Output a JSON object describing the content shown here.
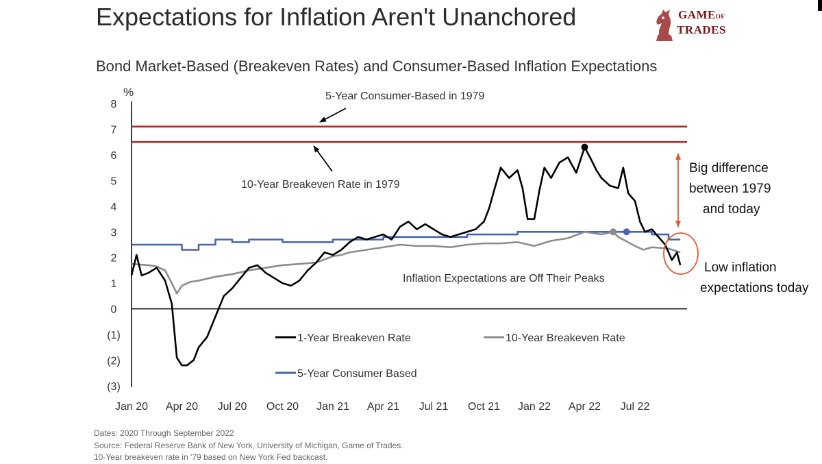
{
  "header": {
    "title": "Expectations for Inflation Aren't Unanchored",
    "subtitle": "Bond Market-Based (Breakeven Rates) and Consumer-Based Inflation Expectations"
  },
  "logo": {
    "line1_a": "GAME",
    "line1_b": "OF",
    "line2": "TRADES"
  },
  "footer": {
    "dates": "Dates: 2020 Through September 2022",
    "source": "Source: Federal Reserve Bank of New York, University of Michigan, Game of Trades.",
    "note": "10-Year breakeven rate in '79 based on New York Fed backcast."
  },
  "colors": {
    "one_year": "#000000",
    "ten_year": "#8c8c8c",
    "consumer": "#4a63b0",
    "ref_lines": "#b02a2a",
    "callout": "#e05a2a"
  },
  "chart_data": {
    "type": "line",
    "y_unit": "%",
    "ylim": [
      -3,
      8
    ],
    "yticks": [
      "8",
      "7",
      "6",
      "5",
      "4",
      "3",
      "2",
      "1",
      "0",
      "(1)",
      "(2)",
      "(3)"
    ],
    "ytick_values": [
      8,
      7,
      6,
      5,
      4,
      3,
      2,
      1,
      0,
      -1,
      -2,
      -3
    ],
    "x_range": [
      "2020-01",
      "2022-09"
    ],
    "xticks": [
      "Jan 20",
      "Apr 20",
      "Jul 20",
      "Oct 20",
      "Jan 21",
      "Apr 21",
      "Jul 21",
      "Oct 21",
      "Jan 22",
      "Apr 22",
      "Jul 22"
    ],
    "xtick_months": [
      0,
      3,
      6,
      9,
      12,
      15,
      18,
      21,
      24,
      27,
      30
    ],
    "reference_lines": [
      {
        "name": "5-Year Consumer-Based in 1979",
        "value": 7.1
      },
      {
        "name": "10-Year Breakeven Rate in 1979",
        "value": 6.5
      }
    ],
    "series": [
      {
        "name": "1-Year Breakeven Rate",
        "x_months": [
          0,
          0.3,
          0.6,
          1,
          1.5,
          2,
          2.4,
          2.7,
          3,
          3.3,
          3.7,
          4,
          4.5,
          5,
          5.5,
          6,
          6.5,
          7,
          7.5,
          8,
          8.5,
          9,
          9.5,
          10,
          10.5,
          11,
          11.5,
          12,
          12.5,
          13,
          13.5,
          14,
          14.5,
          15,
          15.5,
          16,
          16.5,
          17,
          17.5,
          18,
          18.5,
          19,
          19.5,
          20,
          20.5,
          21,
          21.3,
          21.6,
          22,
          22.5,
          23,
          23.3,
          23.6,
          23.8,
          24,
          24.3,
          24.6,
          25,
          25.5,
          26,
          26.5,
          27,
          27.4,
          27.7,
          28,
          28.5,
          29,
          29.3,
          29.6,
          30,
          30.3,
          30.6,
          31,
          31.4,
          31.8,
          32.2,
          32.5,
          32.7
        ],
        "values": [
          1.3,
          2.1,
          1.3,
          1.4,
          1.6,
          1.1,
          0.2,
          -1.9,
          -2.2,
          -2.2,
          -2.0,
          -1.5,
          -1.1,
          -0.3,
          0.5,
          0.8,
          1.2,
          1.6,
          1.7,
          1.4,
          1.2,
          1.0,
          0.9,
          1.1,
          1.5,
          1.8,
          2.2,
          2.1,
          2.3,
          2.6,
          2.8,
          2.7,
          2.8,
          2.9,
          2.7,
          3.2,
          3.4,
          3.1,
          3.3,
          3.1,
          2.9,
          2.8,
          2.9,
          3.0,
          3.1,
          3.4,
          3.9,
          4.6,
          5.5,
          5.1,
          5.4,
          4.7,
          3.5,
          3.5,
          3.5,
          4.6,
          5.5,
          5.1,
          5.7,
          5.9,
          5.3,
          6.3,
          5.8,
          5.4,
          5.1,
          4.8,
          4.7,
          5.5,
          4.5,
          4.2,
          3.4,
          3.0,
          3.1,
          2.8,
          2.5,
          1.9,
          2.2,
          1.7
        ],
        "peak": {
          "x_month": 27,
          "value": 6.3
        }
      },
      {
        "name": "10-Year Breakeven Rate",
        "x_months": [
          0,
          1,
          1.5,
          2,
          2.4,
          2.7,
          3,
          3.5,
          4,
          5,
          6,
          7,
          8,
          9,
          10,
          11,
          12,
          12.5,
          13,
          14,
          15,
          16,
          17,
          18,
          19,
          20,
          21,
          22,
          23,
          24,
          25,
          26,
          27,
          28,
          28.7,
          29,
          30,
          30.5,
          31,
          32,
          32.7
        ],
        "values": [
          1.75,
          1.7,
          1.65,
          1.5,
          1.0,
          0.6,
          0.9,
          1.05,
          1.1,
          1.25,
          1.35,
          1.5,
          1.6,
          1.7,
          1.75,
          1.8,
          2.05,
          2.1,
          2.2,
          2.3,
          2.4,
          2.5,
          2.45,
          2.45,
          2.4,
          2.5,
          2.55,
          2.55,
          2.6,
          2.45,
          2.65,
          2.75,
          3.0,
          2.9,
          3.0,
          2.8,
          2.45,
          2.3,
          2.4,
          2.35,
          2.2
        ],
        "peak": {
          "x_month": 28.7,
          "value": 3.0
        }
      },
      {
        "name": "5-Year Consumer Based",
        "x_months": [
          0,
          1,
          2,
          3,
          4,
          5,
          6,
          7,
          8,
          9,
          10,
          11,
          12,
          13,
          14,
          15,
          16,
          17,
          18,
          19,
          20,
          21,
          22,
          23,
          24,
          25,
          26,
          27,
          28,
          29,
          30,
          31,
          32,
          32.7
        ],
        "values": [
          2.5,
          2.5,
          2.5,
          2.3,
          2.5,
          2.7,
          2.6,
          2.7,
          2.7,
          2.6,
          2.6,
          2.6,
          2.7,
          2.7,
          2.7,
          2.8,
          2.8,
          2.8,
          2.8,
          2.8,
          2.9,
          2.9,
          2.9,
          3.0,
          3.0,
          3.0,
          3.0,
          3.0,
          3.0,
          3.0,
          3.0,
          2.9,
          2.7,
          2.7
        ],
        "peak": {
          "x_month": 29.5,
          "value": 3.0
        }
      }
    ],
    "legend": [
      "1-Year Breakeven Rate",
      "10-Year Breakeven Rate",
      "5-Year Consumer Based"
    ],
    "annotations": {
      "consumer_1979": "5-Year Consumer-Based in 1979",
      "breakeven_1979": "10-Year Breakeven Rate in 1979",
      "off_peaks": "Inflation Expectations are Off Their Peaks",
      "difference_1": "Big difference",
      "difference_2": "between 1979",
      "difference_3": "and today",
      "low_1": "Low inflation",
      "low_2": "expectations today"
    }
  }
}
